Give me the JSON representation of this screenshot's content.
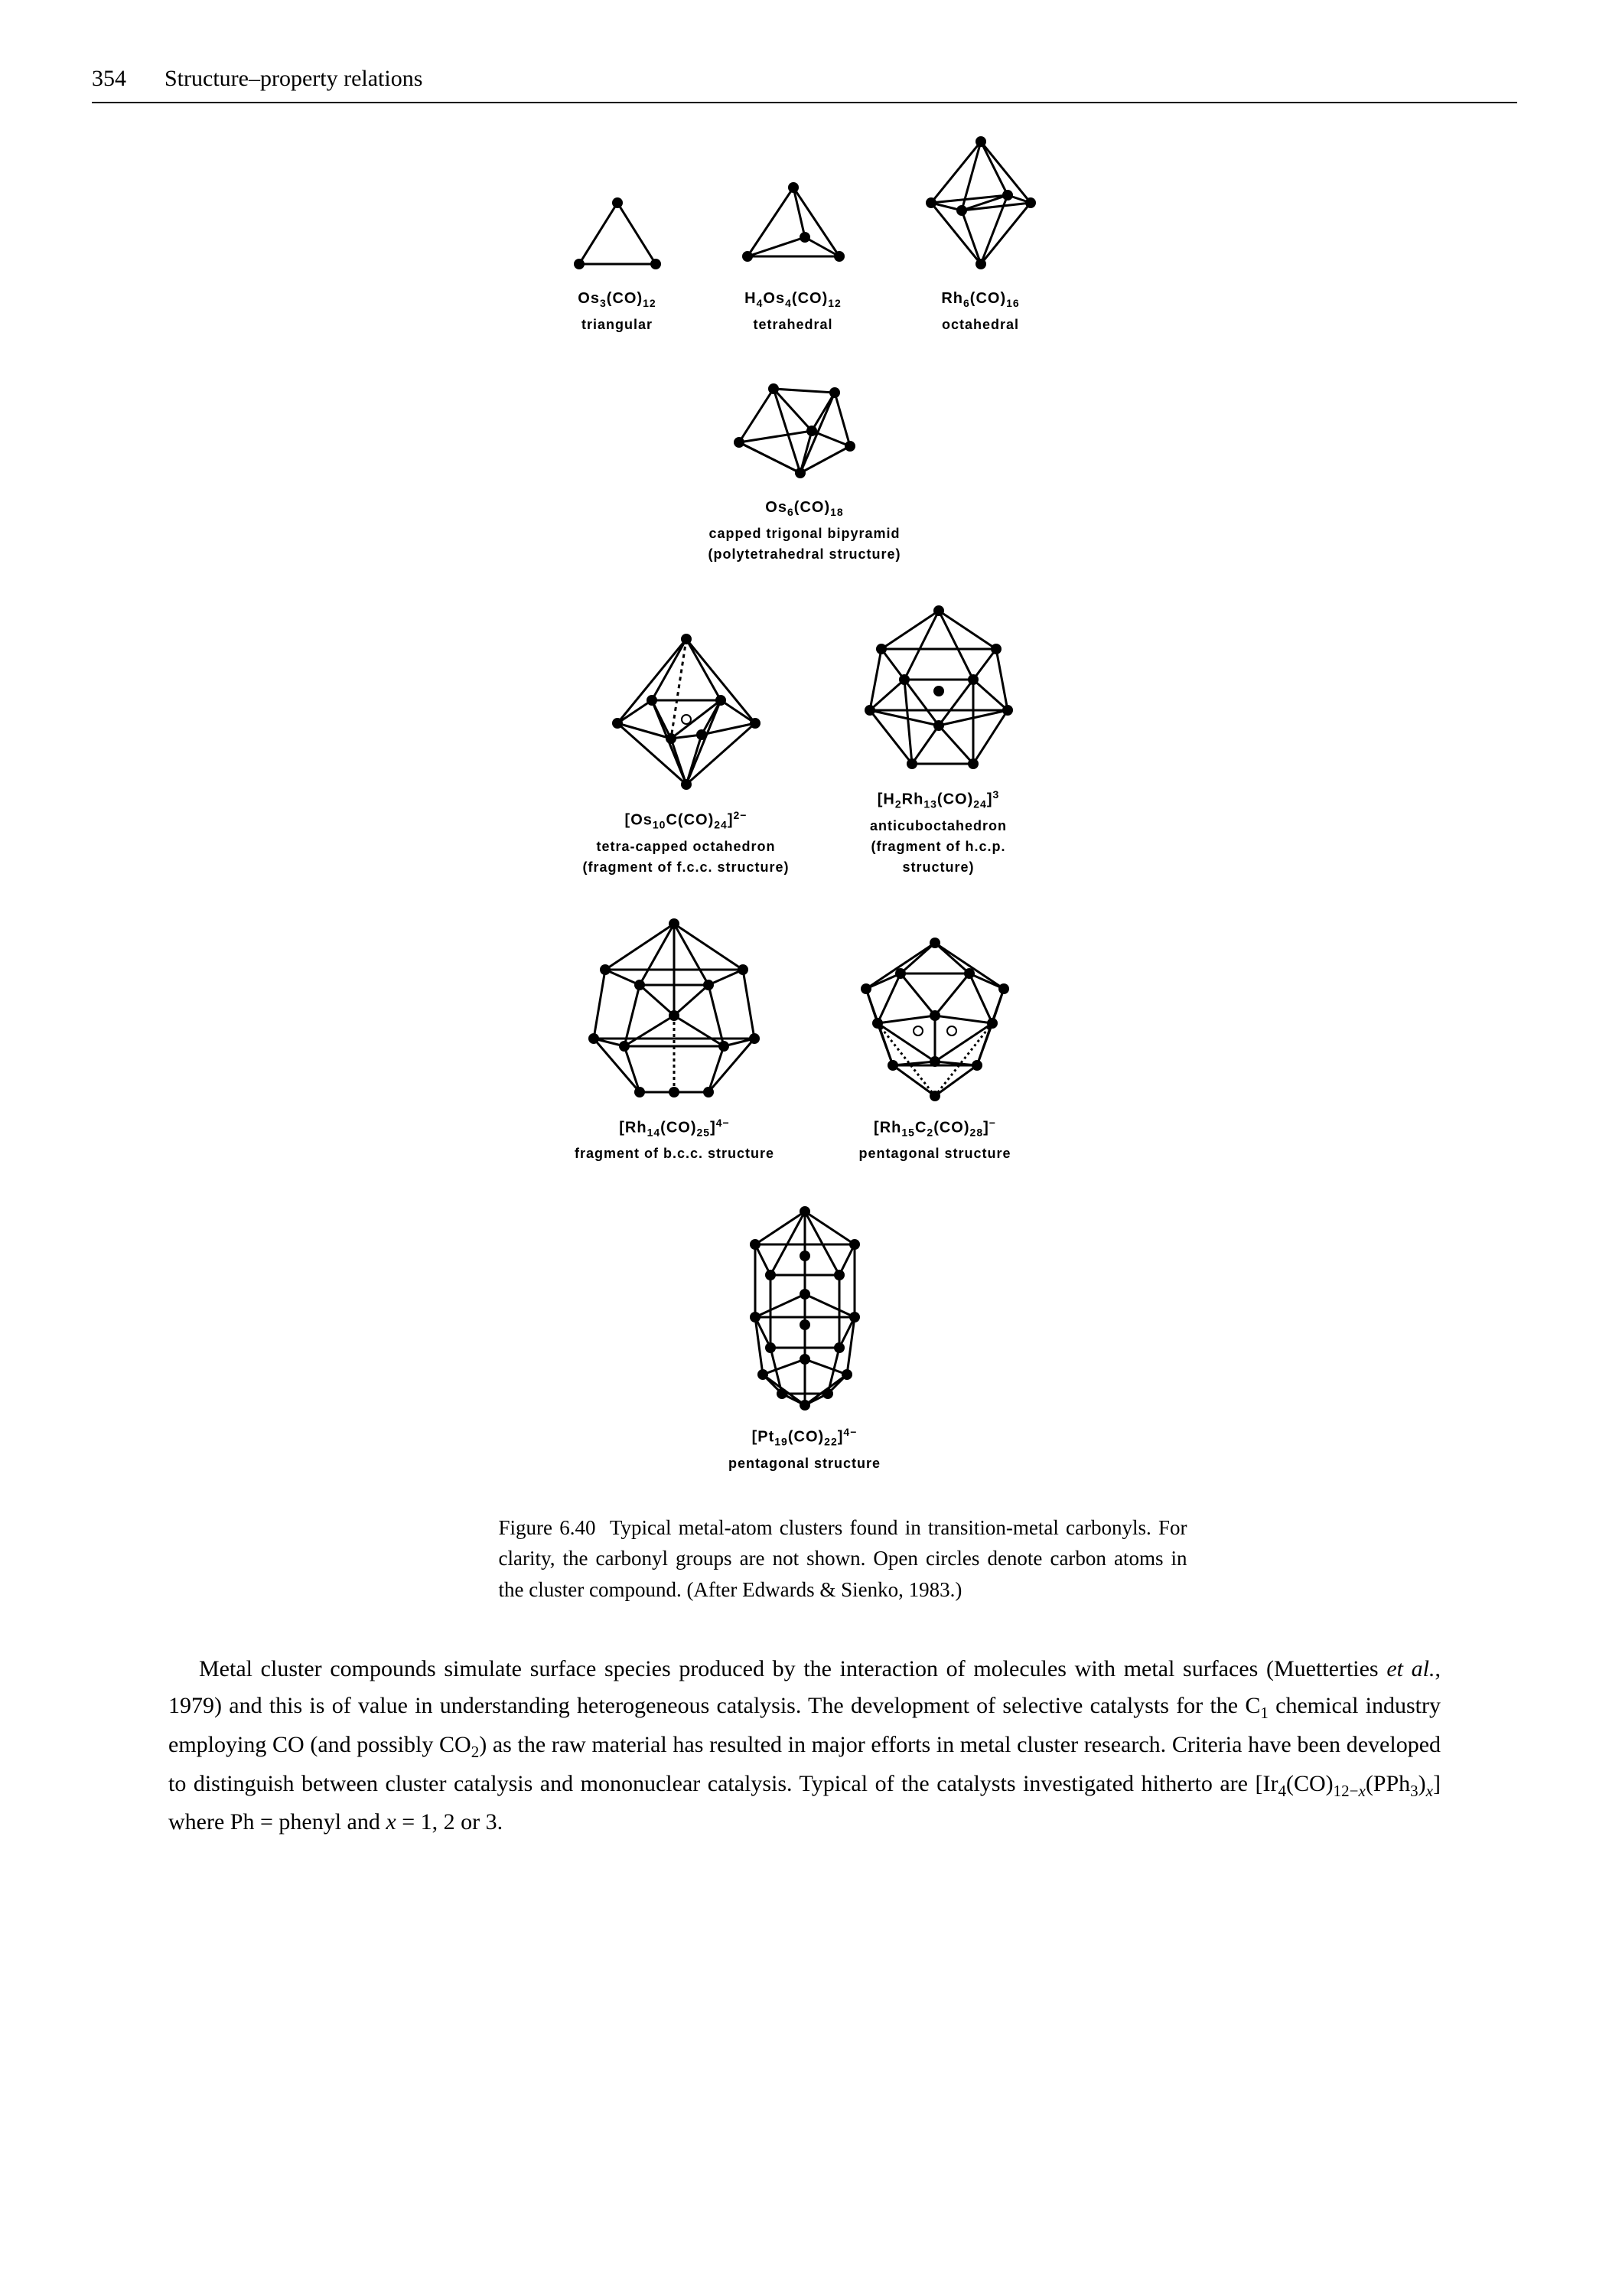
{
  "page_number": "354",
  "chapter_title": "Structure–property relations",
  "clusters": {
    "c1": {
      "formula_html": "Os<sub>3</sub>(CO)<sub>12</sub>",
      "desc": "triangular"
    },
    "c2": {
      "formula_html": "H<sub>4</sub>Os<sub>4</sub>(CO)<sub>12</sub>",
      "desc": "tetrahedral"
    },
    "c3": {
      "formula_html": "Rh<sub>6</sub>(CO)<sub>16</sub>",
      "desc": "octahedral"
    },
    "c4": {
      "formula_html": "Os<sub>6</sub>(CO)<sub>18</sub>",
      "desc_html": "capped trigonal bipyramid<br>(polytetrahedral structure)"
    },
    "c5": {
      "formula_html": "[Os<sub>10</sub>C(CO)<sub>24</sub>]<sup>2−</sup>",
      "desc_html": "tetra-capped octahedron<br>(fragment of f.c.c. structure)"
    },
    "c6": {
      "formula_html": "[H<sub>2</sub>Rh<sub>13</sub>(CO)<sub>24</sub>]<sup>3</sup>",
      "desc_html": "anticuboctahedron<br>(fragment of h.c.p.<br>structure)"
    },
    "c7": {
      "formula_html": "[Rh<sub>14</sub>(CO)<sub>25</sub>]<sup>4−</sup>",
      "desc": "fragment of b.c.c. structure"
    },
    "c8": {
      "formula_html": "[Rh<sub>15</sub>C<sub>2</sub>(CO)<sub>28</sub>]<sup>−</sup>",
      "desc": "pentagonal structure"
    },
    "c9": {
      "formula_html": "[Pt<sub>19</sub>(CO)<sub>22</sub>]<sup>4−</sup>",
      "desc": "pentagonal structure"
    }
  },
  "caption_html": "Figure 6.40&nbsp;&nbsp;Typical metal-atom clusters found in transition-metal carbonyls. For clarity, the carbonyl groups are not shown. Open circles denote carbon atoms in the cluster compound. (After Edwards &amp; Sienko, 1983.)",
  "body_html": "Metal cluster compounds simulate surface species produced by the interaction of molecules with metal surfaces (Muetterties <span class=\"italic\">et al.</span>, 1979) and this is of value in understanding heterogeneous catalysis. The development of selective catalysts for the C<sub>1</sub> chemical industry employing CO (and possibly CO<sub>2</sub>) as the raw material has resulted in major efforts in metal cluster research. Criteria have been developed to distinguish between cluster catalysis and mononuclear catalysis. Typical of the catalysts investigated hitherto are [Ir<sub>4</sub>(CO)<sub>12−<span class=\"italic\">x</span></sub>(PPh<sub>3</sub>)<sub><span class=\"italic\">x</span></sub>] where Ph = phenyl and <span class=\"italic\">x</span> = 1, 2 or 3.",
  "style": {
    "stroke": "#000000",
    "fill": "#000000",
    "open_fill": "#ffffff",
    "stroke_width": 3,
    "node_r": 7,
    "open_r": 6
  }
}
